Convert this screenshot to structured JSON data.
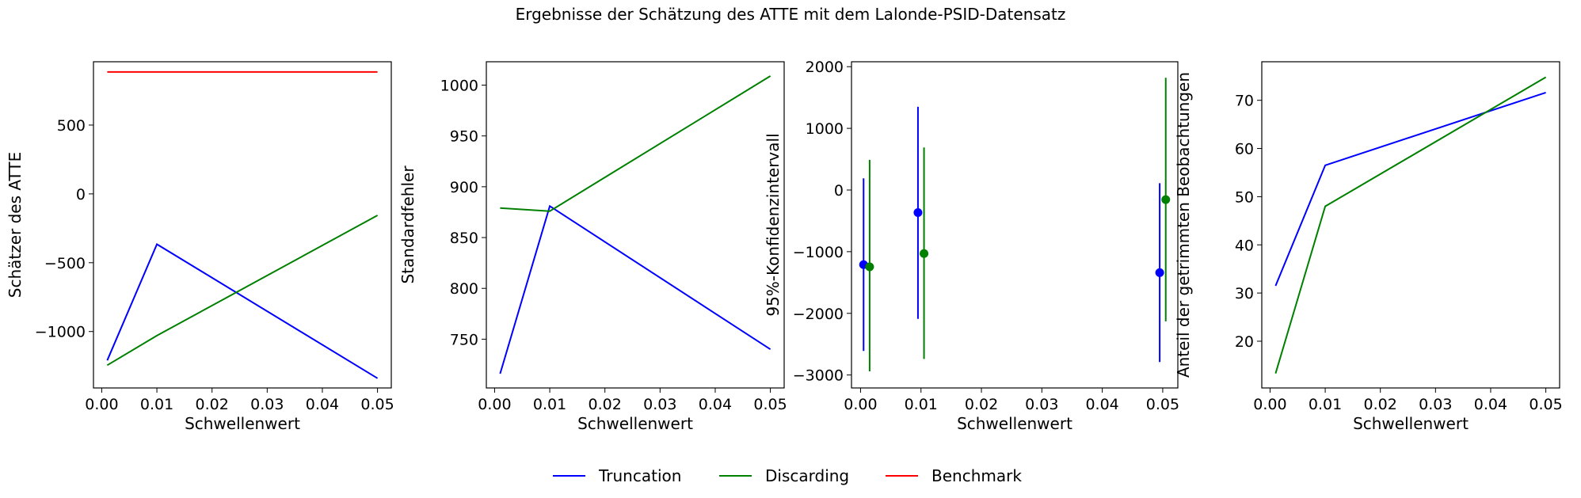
{
  "suptitle": "Ergebnisse der Schätzung des ATTE mit dem Lalonde-PSID-Datensatz",
  "legend": {
    "placement": "lower-center",
    "entries": [
      {
        "label": "Truncation",
        "color": "#0000ff"
      },
      {
        "label": "Discarding",
        "color": "#008000"
      },
      {
        "label": "Benchmark",
        "color": "#ff0000"
      }
    ]
  },
  "chart_data": [
    {
      "type": "line",
      "xlabel": "Schwellenwert",
      "ylabel": "Schätzer des ATTE",
      "xlim": [
        -0.0015,
        0.0525
      ],
      "ylim": [
        -1410,
        960
      ],
      "xticks": [
        0.0,
        0.01,
        0.02,
        0.03,
        0.04,
        0.05
      ],
      "xtick_labels": [
        "0.00",
        "0.01",
        "0.02",
        "0.03",
        "0.04",
        "0.05"
      ],
      "yticks": [
        -1000,
        -500,
        0,
        500
      ],
      "ytick_labels": [
        "−1000",
        "−500",
        "0",
        "500"
      ],
      "series": [
        {
          "name": "Truncation",
          "color": "#0000ff",
          "x": [
            0.001,
            0.01,
            0.05
          ],
          "y": [
            -1210,
            -366,
            -1340
          ]
        },
        {
          "name": "Discarding",
          "color": "#008000",
          "x": [
            0.001,
            0.01,
            0.05
          ],
          "y": [
            -1245,
            -1030,
            -156
          ]
        },
        {
          "name": "Benchmark",
          "color": "#ff0000",
          "x": [
            0.001,
            0.05
          ],
          "y": [
            886,
            886
          ]
        }
      ]
    },
    {
      "type": "line",
      "xlabel": "Schwellenwert",
      "ylabel": "Standardfehler",
      "xlim": [
        -0.0015,
        0.0525
      ],
      "ylim": [
        702,
        1023
      ],
      "xticks": [
        0.0,
        0.01,
        0.02,
        0.03,
        0.04,
        0.05
      ],
      "xtick_labels": [
        "0.00",
        "0.01",
        "0.02",
        "0.03",
        "0.04",
        "0.05"
      ],
      "yticks": [
        750,
        800,
        850,
        900,
        950,
        1000
      ],
      "ytick_labels": [
        "750",
        "800",
        "850",
        "900",
        "950",
        "1000"
      ],
      "series": [
        {
          "name": "Truncation",
          "color": "#0000ff",
          "x": [
            0.001,
            0.01,
            0.05
          ],
          "y": [
            716,
            881,
            740
          ]
        },
        {
          "name": "Discarding",
          "color": "#008000",
          "x": [
            0.001,
            0.01,
            0.05
          ],
          "y": [
            879,
            876,
            1009
          ]
        }
      ]
    },
    {
      "type": "errorbar",
      "xlabel": "Schwellenwert",
      "ylabel": "95%-Konfidenzintervall",
      "xlim": [
        -0.0015,
        0.0525
      ],
      "ylim": [
        -3210,
        2080
      ],
      "xticks": [
        0.0,
        0.01,
        0.02,
        0.03,
        0.04,
        0.05
      ],
      "xtick_labels": [
        "0.00",
        "0.01",
        "0.02",
        "0.03",
        "0.04",
        "0.05"
      ],
      "yticks": [
        -3000,
        -2000,
        -1000,
        0,
        1000,
        2000
      ],
      "ytick_labels": [
        "−3000",
        "−2000",
        "−1000",
        "0",
        "1000",
        "2000"
      ],
      "series": [
        {
          "name": "Truncation",
          "color": "#0000ff",
          "x": [
            0.0005,
            0.0095,
            0.0495
          ],
          "y": [
            -1210,
            -366,
            -1340
          ],
          "lower": [
            -2610,
            -2090,
            -2790
          ],
          "upper": [
            190,
            1350,
            110
          ]
        },
        {
          "name": "Discarding",
          "color": "#008000",
          "x": [
            0.0015,
            0.0105,
            0.0505
          ],
          "y": [
            -1245,
            -1030,
            -156
          ],
          "lower": [
            -2940,
            -2740,
            -2130
          ],
          "upper": [
            490,
            690,
            1820
          ]
        }
      ]
    },
    {
      "type": "line",
      "xlabel": "Schwellenwert",
      "ylabel": "Anteil der getrimmten Beobachtungen",
      "xlim": [
        -0.0015,
        0.0525
      ],
      "ylim": [
        10.3,
        78.0
      ],
      "xticks": [
        0.0,
        0.01,
        0.02,
        0.03,
        0.04,
        0.05
      ],
      "xtick_labels": [
        "0.00",
        "0.01",
        "0.02",
        "0.03",
        "0.04",
        "0.05"
      ],
      "yticks": [
        20,
        30,
        40,
        50,
        60,
        70
      ],
      "ytick_labels": [
        "20",
        "30",
        "40",
        "50",
        "60",
        "70"
      ],
      "series": [
        {
          "name": "Truncation",
          "color": "#0000ff",
          "x": [
            0.001,
            0.01,
            0.05
          ],
          "y": [
            31.5,
            56.5,
            71.6
          ]
        },
        {
          "name": "Discarding",
          "color": "#008000",
          "x": [
            0.001,
            0.01,
            0.05
          ],
          "y": [
            13.3,
            48.0,
            74.8
          ]
        }
      ]
    }
  ]
}
